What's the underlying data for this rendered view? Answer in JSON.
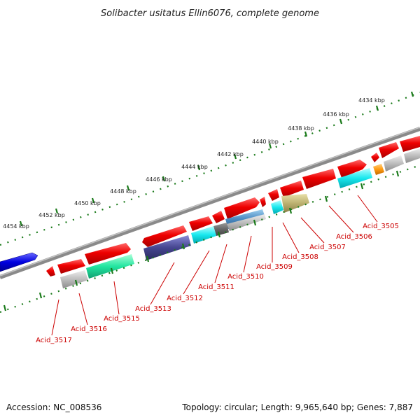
{
  "title": "Solibacter usitatus Ellin6076, complete genome",
  "footer": {
    "accession": "Accession: NC_008536",
    "summary": "Topology: circular; Length: 9,965,640 bp; Genes: 7,887"
  },
  "ruler": {
    "tick_labels": [
      "4434 kbp",
      "4436 kbp",
      "4438 kbp",
      "4440 kbp",
      "4442 kbp",
      "4444 kbp",
      "4446 kbp",
      "4448 kbp",
      "4450 kbp",
      "4452 kbp",
      "4454 kbp"
    ]
  },
  "gene_labels": [
    "Acid_3505",
    "Acid_3506",
    "Acid_3507",
    "Acid_3508",
    "Acid_3509",
    "Acid_3510",
    "Acid_3511",
    "Acid_3512",
    "Acid_3513",
    "Acid_3515",
    "Acid_3516",
    "Acid_3517"
  ],
  "colors": {
    "gene_label": "#cc0000",
    "forward_cds": "#e8000b",
    "reverse_cds": "#e8000b",
    "backbone": "#777777",
    "tick": "#1a7a1a",
    "blue_feature": "#0000dd"
  }
}
